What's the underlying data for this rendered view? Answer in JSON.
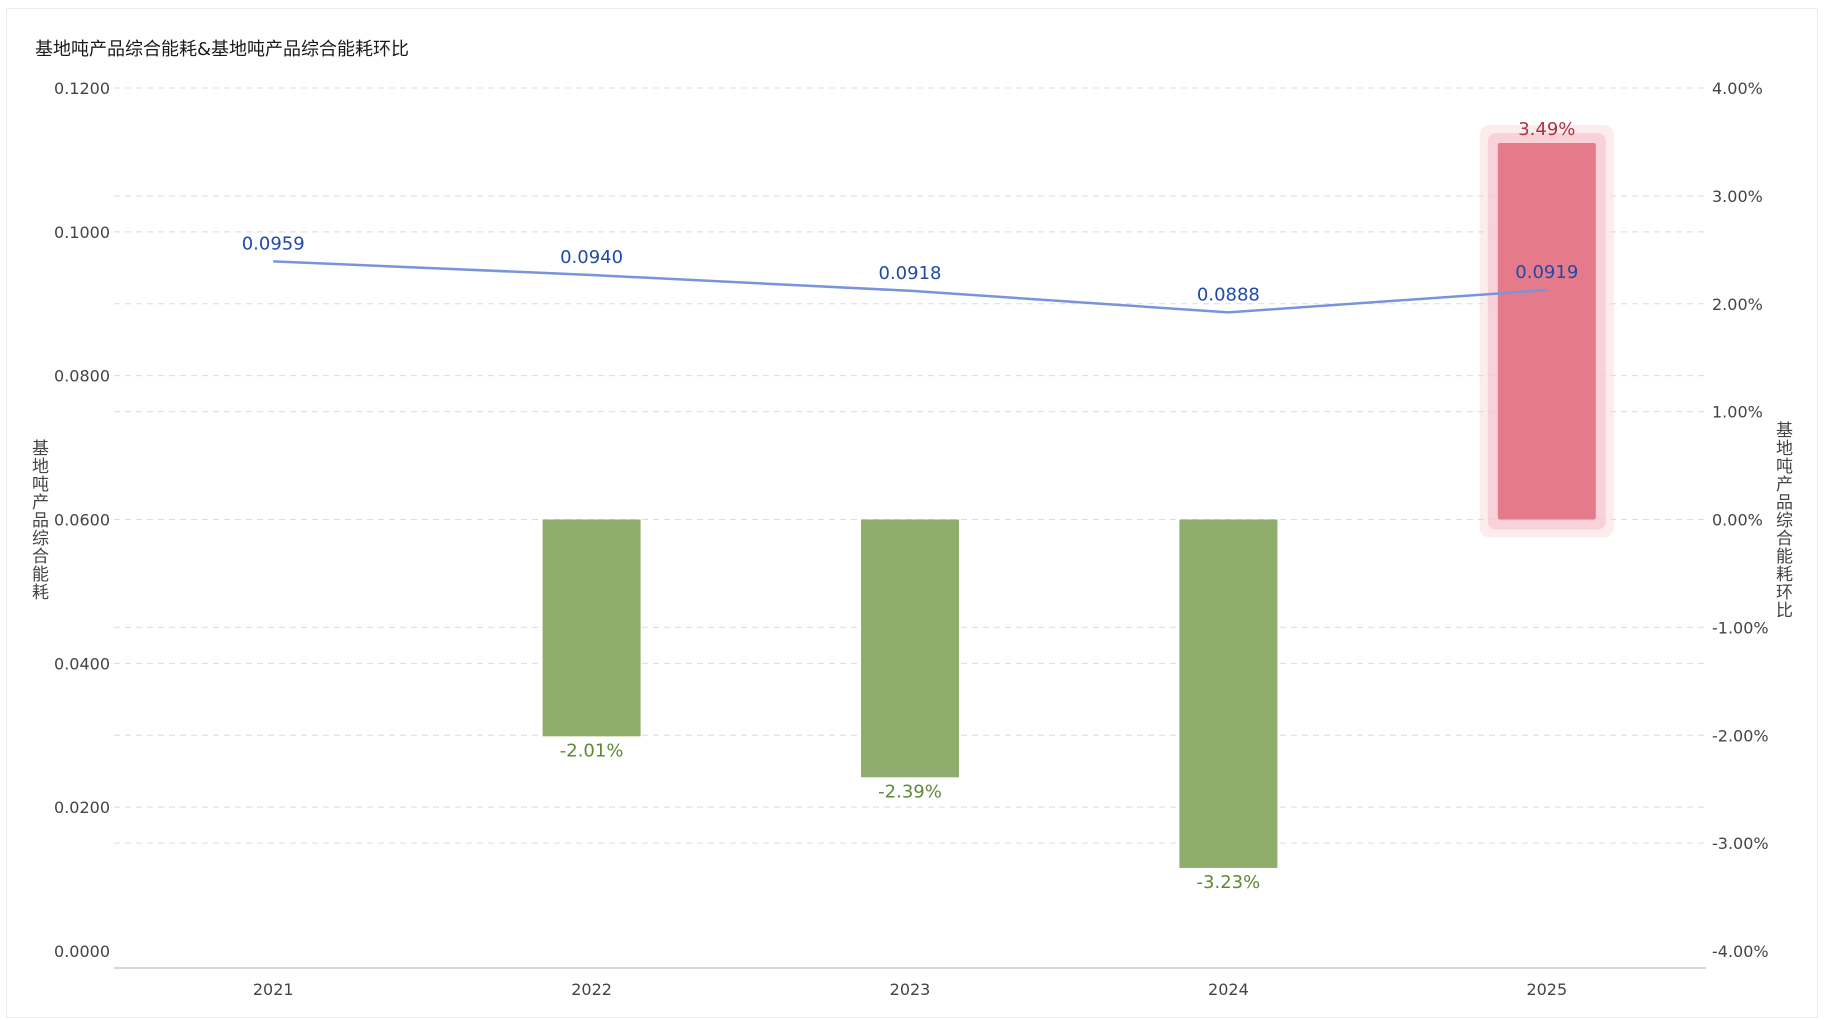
{
  "title": "基地吨产品综合能耗&基地吨产品综合能耗环比",
  "colors": {
    "line": "#7a94dc",
    "line_label": "#1f4aa8",
    "bar_negative": "#8fae6e",
    "bar_negative_label": "#5f8a33",
    "bar_positive": "#e57b8a",
    "bar_positive_glow": "#f7c8cf",
    "bar_positive_label": "#b03040",
    "grid": "#dcdcdc",
    "axis": "#c8c8c8"
  },
  "chart_data": {
    "type": "bar+line",
    "title": "基地吨产品综合能耗&基地吨产品综合能耗环比",
    "categories": [
      "2021",
      "2022",
      "2023",
      "2024",
      "2025"
    ],
    "y_left": {
      "label": "基地吨产品综合能耗",
      "range": [
        0,
        0.12
      ],
      "ticks": [
        "0.0000",
        "0.0200",
        "0.0400",
        "0.0600",
        "0.0800",
        "0.1000",
        "0.1200"
      ],
      "tick_values": [
        0,
        0.02,
        0.04,
        0.06,
        0.08,
        0.1,
        0.12
      ]
    },
    "y_right": {
      "label": "基地吨产品综合能耗环比",
      "range": [
        -4,
        4
      ],
      "ticks": [
        "-4.00%",
        "-3.00%",
        "-2.00%",
        "-1.00%",
        "0.00%",
        "1.00%",
        "2.00%",
        "3.00%",
        "4.00%"
      ],
      "tick_values": [
        -4,
        -3,
        -2,
        -1,
        0,
        1,
        2,
        3,
        4
      ]
    },
    "series": [
      {
        "type": "line",
        "axis": "left",
        "values": [
          0.0959,
          0.094,
          0.0918,
          0.0888,
          0.0919
        ],
        "labels": [
          "0.0959",
          "0.0940",
          "0.0918",
          "0.0888",
          "0.0919"
        ]
      },
      {
        "type": "bar",
        "axis": "right",
        "values": [
          null,
          -2.01,
          -2.39,
          -3.23,
          3.49
        ],
        "labels": [
          "",
          "-2.01%",
          "-2.39%",
          "-3.23%",
          "3.49%"
        ]
      }
    ],
    "grid": true,
    "grid_style": "dashed"
  }
}
